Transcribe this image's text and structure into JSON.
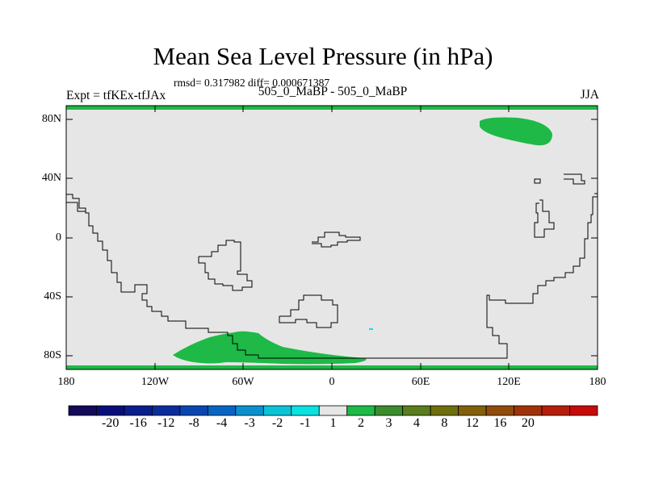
{
  "title": "Mean Sea Level Pressure (in hPa)",
  "stats_text": "rmsd= 0.317982 diff= 0.000671387",
  "experiment_text": "Expt = tfKEx-tfJAx",
  "comparison_text": "505_0_MaBP - 505_0_MaBP",
  "season_text": "JJA",
  "y_tick_labels": [
    "80N",
    "40N",
    "0",
    "40S",
    "80S"
  ],
  "x_tick_labels": [
    "180",
    "120W",
    "60W",
    "0",
    "60E",
    "120E",
    "180"
  ],
  "colorbar": {
    "labels": [
      "-20",
      "-16",
      "-12",
      "-8",
      "-4",
      "-3",
      "-2",
      "-1",
      "1",
      "2",
      "3",
      "4",
      "8",
      "12",
      "16",
      "20"
    ],
    "colors": [
      "#140a5a",
      "#0a0f78",
      "#0a1e8c",
      "#0a2d9b",
      "#0a46af",
      "#0a64c3",
      "#0a91cd",
      "#0ac3d7",
      "#0ae1e1",
      "#e6e6e6",
      "#1eb946",
      "#3c8c2d",
      "#5a7d1e",
      "#6e6e0f",
      "#825f0a",
      "#914b0a",
      "#a0320a",
      "#b41e0a",
      "#c80a0a"
    ]
  },
  "colors": {
    "background": "#e6e6e6",
    "positive_fill": "#1eb946",
    "negative_fill": "#0ae1e1",
    "coastline": "#000000"
  }
}
